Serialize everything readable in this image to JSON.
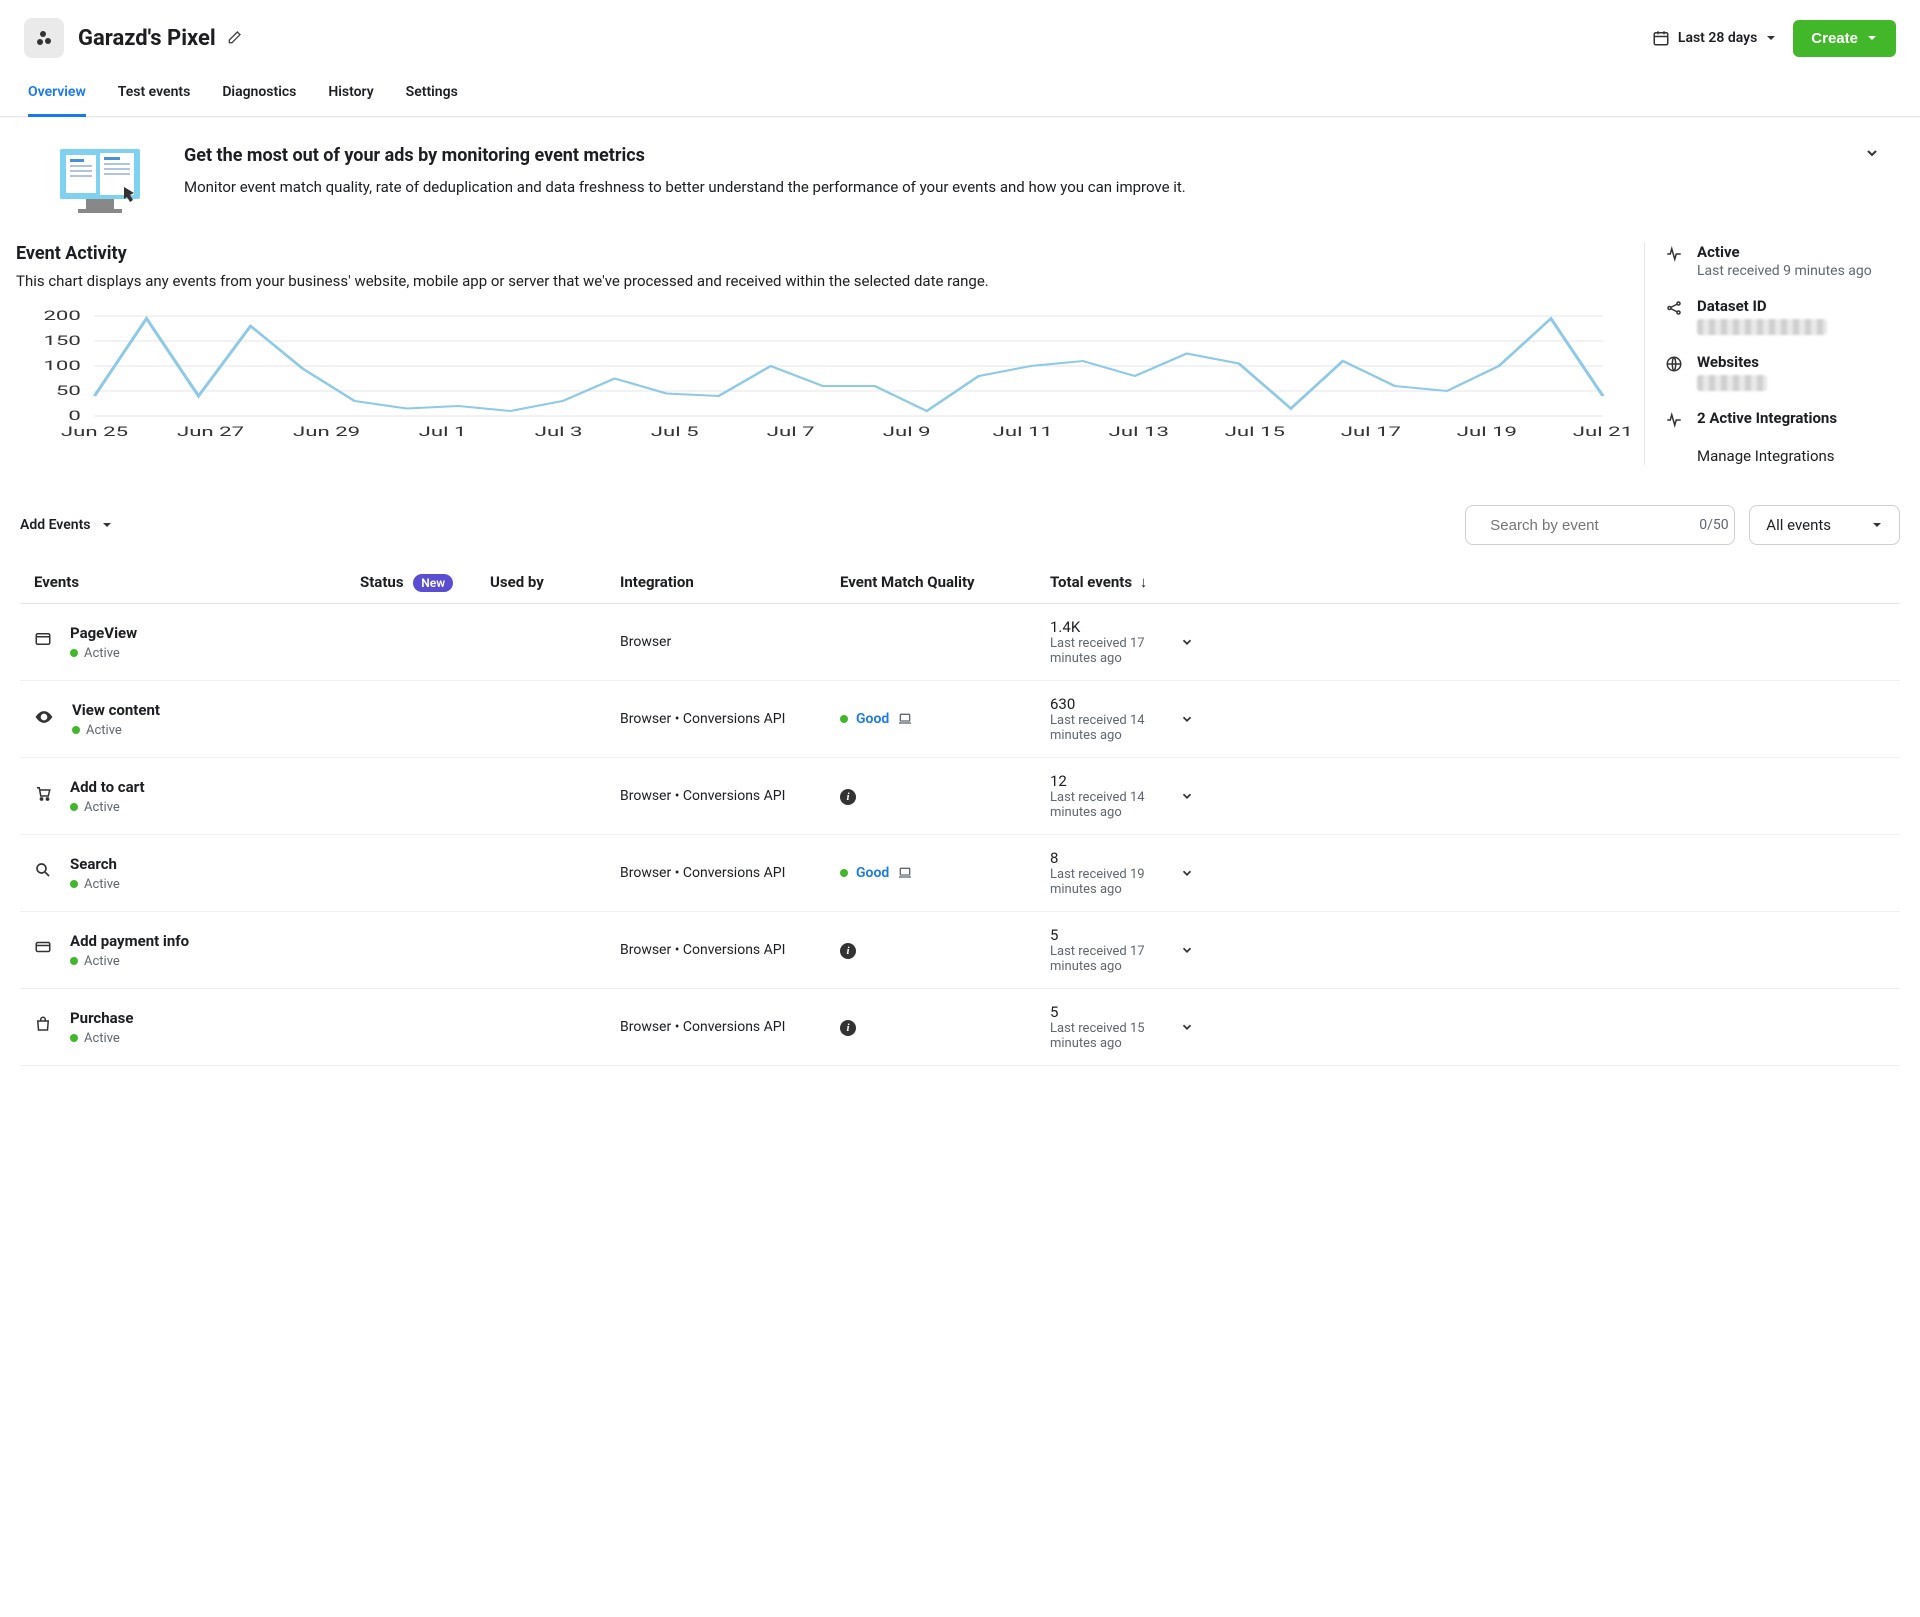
{
  "header": {
    "title": "Garazd's Pixel",
    "date_range": "Last 28 days",
    "create_label": "Create"
  },
  "tabs": [
    "Overview",
    "Test events",
    "Diagnostics",
    "History",
    "Settings"
  ],
  "active_tab": "Overview",
  "banner": {
    "title": "Get the most out of your ads by monitoring event metrics",
    "desc": "Monitor event match quality, rate of deduplication and data freshness to better understand the performance of your events and how you can improve it."
  },
  "activity": {
    "title": "Event Activity",
    "desc": "This chart displays any events from your business' website, mobile app or server that we've processed and received within the selected date range."
  },
  "chart": {
    "type": "line",
    "line_color": "#8ecae6",
    "line_width": 2,
    "grid_color": "#e4e6eb",
    "background_color": "#ffffff",
    "ylim": [
      0,
      200
    ],
    "yticks": [
      0,
      50,
      100,
      150,
      200
    ],
    "x_labels": [
      "Jun 25",
      "Jun 27",
      "Jun 29",
      "Jul 1",
      "Jul 3",
      "Jul 5",
      "Jul 7",
      "Jul 9",
      "Jul 11",
      "Jul 13",
      "Jul 15",
      "Jul 17",
      "Jul 19",
      "Jul 21"
    ],
    "values": [
      40,
      195,
      40,
      180,
      95,
      30,
      15,
      20,
      10,
      30,
      75,
      45,
      40,
      100,
      60,
      60,
      10,
      80,
      100,
      110,
      80,
      125,
      105,
      15,
      110,
      60,
      50,
      100,
      195,
      40
    ]
  },
  "sidebar": {
    "active": {
      "label": "Active",
      "sub": "Last received 9 minutes ago"
    },
    "dataset": {
      "label": "Dataset ID"
    },
    "websites": {
      "label": "Websites"
    },
    "integrations": {
      "label": "2 Active Integrations"
    },
    "manage": "Manage Integrations"
  },
  "toolbar": {
    "add_events": "Add Events",
    "search_placeholder": "Search by event",
    "search_count": "0/50",
    "filter": "All events"
  },
  "table": {
    "headers": {
      "events": "Events",
      "status": "Status",
      "status_badge": "New",
      "usedby": "Used by",
      "integration": "Integration",
      "quality": "Event Match Quality",
      "total": "Total events"
    },
    "rows": [
      {
        "icon": "window",
        "name": "PageView",
        "status": "Active",
        "integration": "Browser",
        "quality": "",
        "total": "1.4K",
        "total_sub": "Last received 17 minutes ago"
      },
      {
        "icon": "eye",
        "name": "View content",
        "status": "Active",
        "integration": "Browser • Conversions API",
        "quality": "good",
        "quality_label": "Good",
        "total": "630",
        "total_sub": "Last received 14 minutes ago"
      },
      {
        "icon": "cart",
        "name": "Add to cart",
        "status": "Active",
        "integration": "Browser • Conversions API",
        "quality": "info",
        "total": "12",
        "total_sub": "Last received 14 minutes ago"
      },
      {
        "icon": "search",
        "name": "Search",
        "status": "Active",
        "integration": "Browser • Conversions API",
        "quality": "good",
        "quality_label": "Good",
        "total": "8",
        "total_sub": "Last received 19 minutes ago"
      },
      {
        "icon": "card",
        "name": "Add payment info",
        "status": "Active",
        "integration": "Browser • Conversions API",
        "quality": "info",
        "total": "5",
        "total_sub": "Last received 17 minutes ago"
      },
      {
        "icon": "bag",
        "name": "Purchase",
        "status": "Active",
        "integration": "Browser • Conversions API",
        "quality": "info",
        "total": "5",
        "total_sub": "Last received 15 minutes ago"
      }
    ]
  }
}
